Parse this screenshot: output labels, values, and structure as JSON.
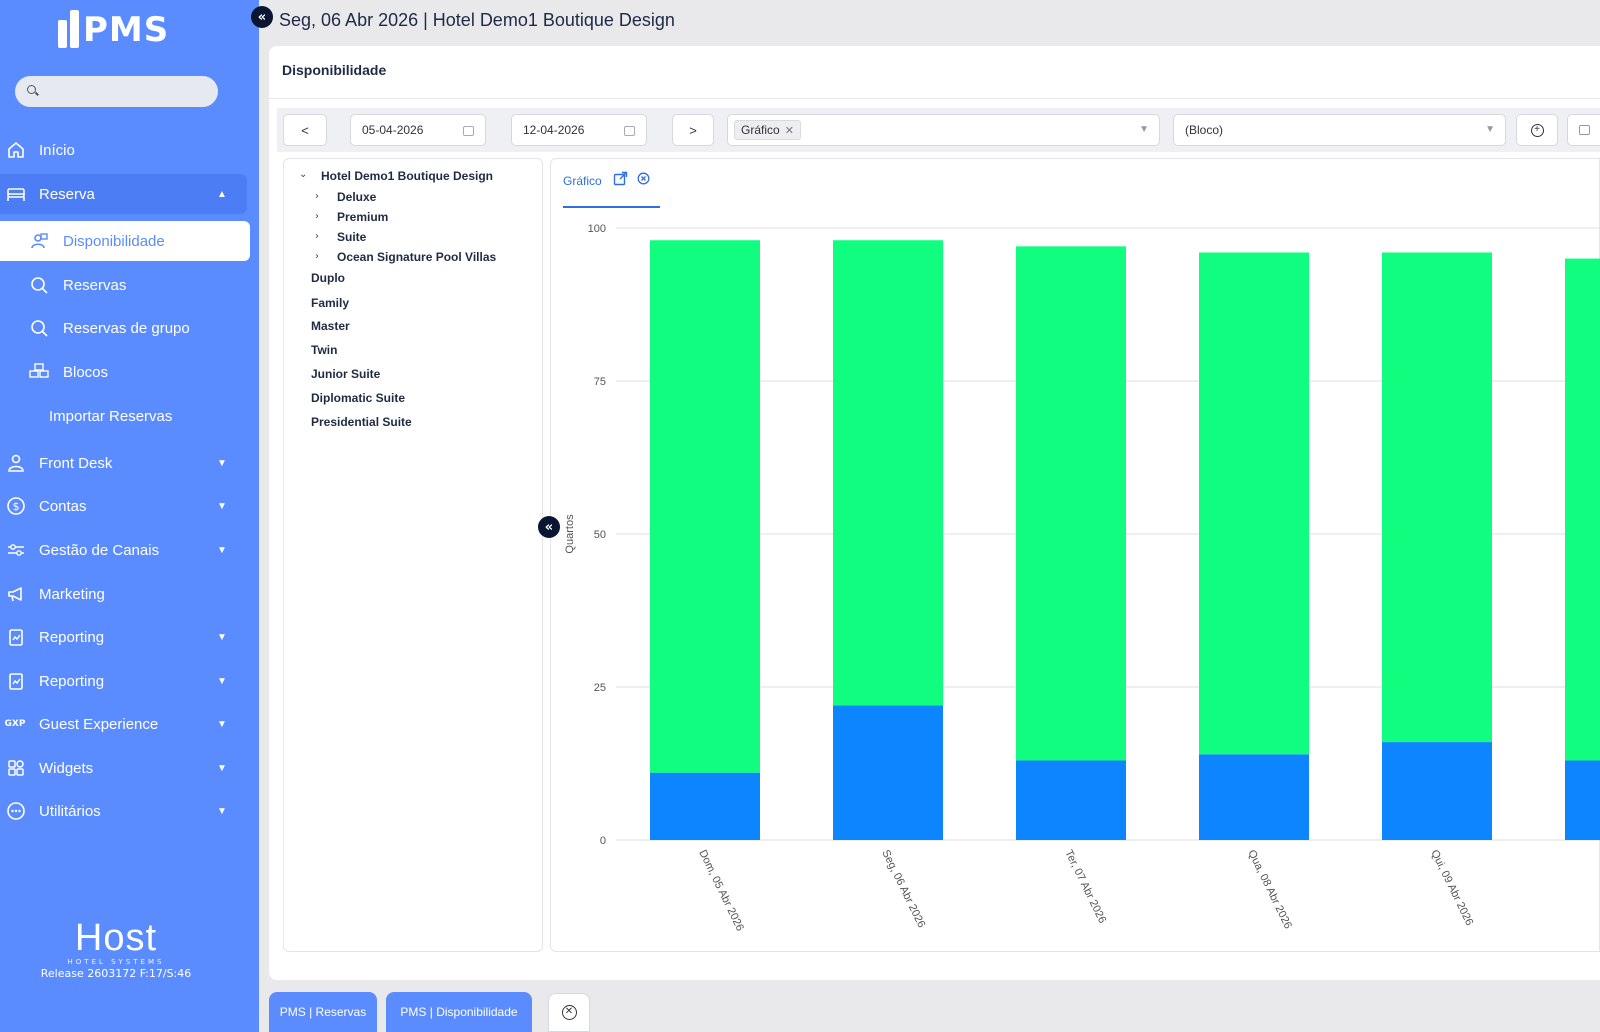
{
  "app": {
    "logo_text": "PMS"
  },
  "search": {
    "placeholder": ""
  },
  "sidebar": {
    "items": [
      {
        "label": "Início",
        "icon": "home-icon"
      },
      {
        "label": "Reserva",
        "icon": "bed-icon"
      },
      {
        "label": "Front Desk",
        "icon": "person-icon"
      },
      {
        "label": "Contas",
        "icon": "dollar-icon"
      },
      {
        "label": "Gestão de Canais",
        "icon": "sliders-icon"
      },
      {
        "label": "Marketing",
        "icon": "megaphone-icon"
      },
      {
        "label": "Reporting",
        "icon": "report-icon"
      },
      {
        "label": "Reporting",
        "icon": "report-icon"
      },
      {
        "label": "Guest Experience",
        "icon": "gxp-icon",
        "icon_text": "GXP"
      },
      {
        "label": "Widgets",
        "icon": "grid-icon"
      },
      {
        "label": "Utilitários",
        "icon": "dots-icon"
      }
    ],
    "subitems": [
      {
        "label": "Disponibilidade",
        "icon": "person-calendar-icon"
      },
      {
        "label": "Reservas",
        "icon": "search-icon"
      },
      {
        "label": "Reservas de grupo",
        "icon": "search-icon"
      },
      {
        "label": "Blocos",
        "icon": "blocks-icon"
      },
      {
        "label": "Importar Reservas",
        "icon": ""
      }
    ],
    "footer": {
      "brand": "Host",
      "brand_sub": "HOTEL SYSTEMS",
      "release": "Release 2603172 F:17/S:46"
    }
  },
  "header": {
    "title": "Seg, 06 Abr 2026 | Hotel Demo1 Boutique Design"
  },
  "page": {
    "title": "Disponibilidade"
  },
  "toolbar": {
    "prev": "<",
    "next": ">",
    "date_from": "05-04-2026",
    "date_to": "12-04-2026",
    "view_tag": "Gráfico",
    "block_select": "(Bloco)"
  },
  "tree": {
    "root": "Hotel Demo1 Boutique Design",
    "children": [
      "Deluxe",
      "Premium",
      "Suite",
      "Ocean Signature Pool Villas"
    ],
    "others": [
      "Duplo",
      "Family",
      "Master",
      "Twin",
      "Junior Suite",
      "Diplomatic Suite",
      "Presidential Suite"
    ]
  },
  "chart_tab": {
    "label": "Gráfico"
  },
  "chart_data": {
    "type": "bar",
    "stacked": true,
    "ylabel": "Quartos",
    "ylim": [
      0,
      100
    ],
    "yticks": [
      0,
      25,
      50,
      75,
      100
    ],
    "grid": true,
    "categories": [
      "Dom, 05 Abr 2026",
      "Seg, 06 Abr 2026",
      "Ter, 07 Abr 2026",
      "Qua, 08 Abr 2026",
      "Qui, 09 Abr 2026",
      ""
    ],
    "series": [
      {
        "values": [
          11,
          22,
          13,
          14,
          16,
          13
        ],
        "color": "#0d85fe"
      },
      {
        "values": [
          87,
          76,
          84,
          82,
          80,
          82
        ],
        "color": "#10fd80"
      }
    ]
  },
  "bottom_tabs": [
    "PMS | Reservas",
    "PMS | Disponibilidade"
  ],
  "colors": {
    "sidebar": "#5b8cff",
    "accent": "#2f6fe0"
  }
}
